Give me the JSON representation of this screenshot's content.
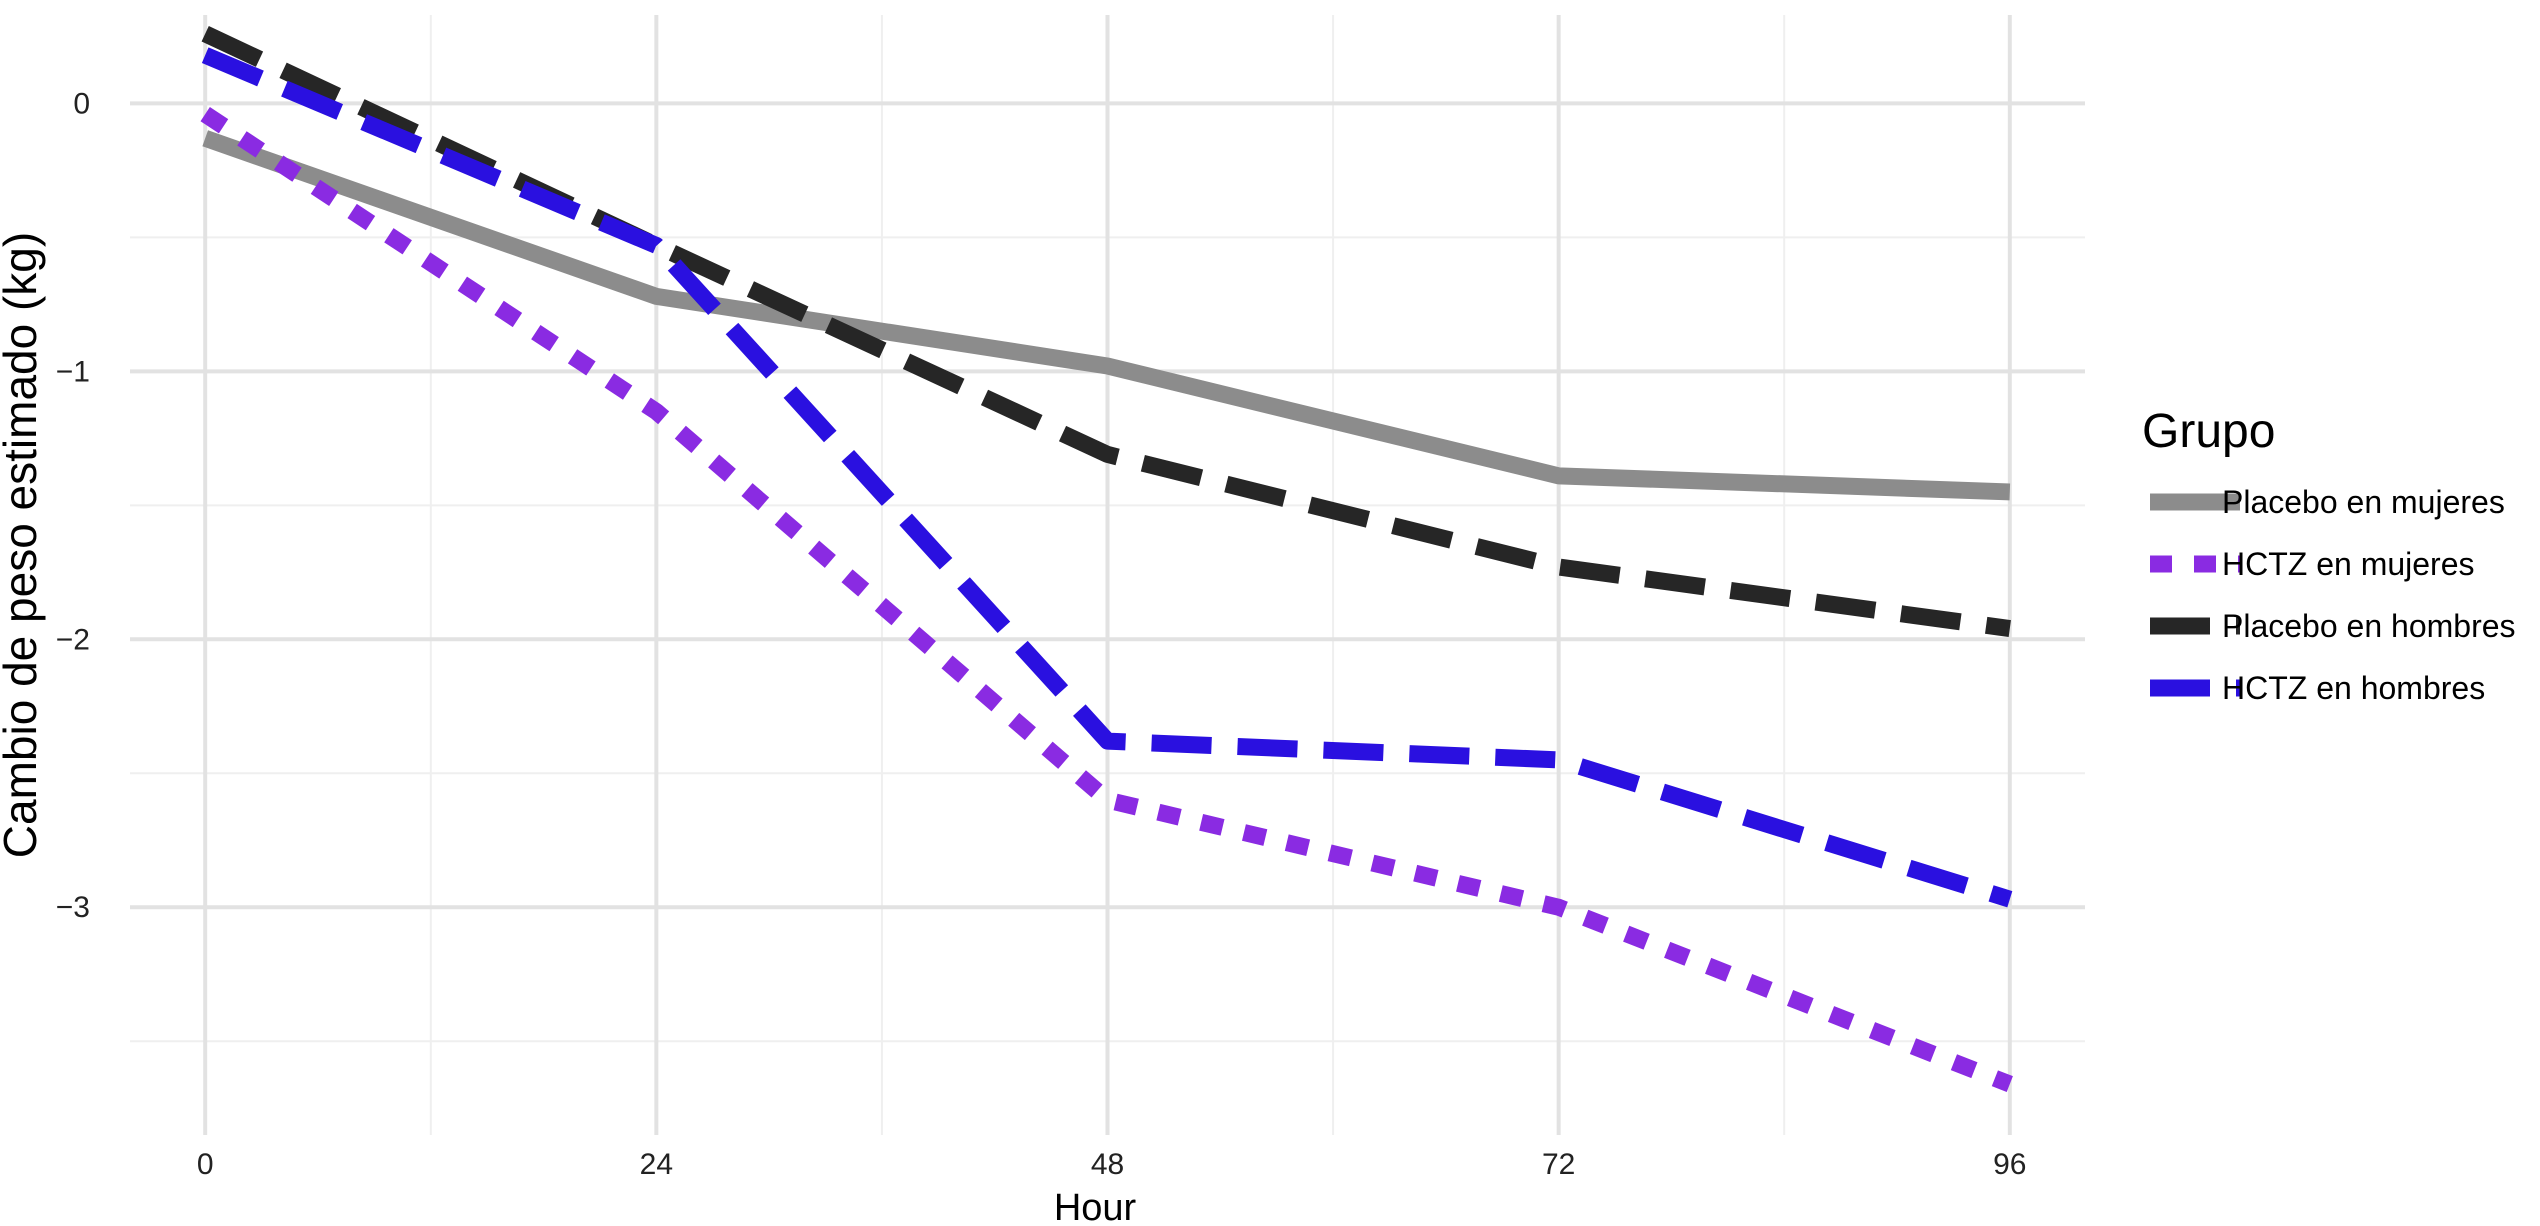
{
  "chart_data": {
    "type": "line",
    "xlabel": "Hour",
    "ylabel": "Cambio de peso estimado (kg)",
    "x": [
      0,
      24,
      48,
      72,
      96
    ],
    "x_ticks": [
      "0",
      "24",
      "48",
      "72",
      "96"
    ],
    "y_ticks": [
      "0",
      "−1",
      "−2",
      "−3"
    ],
    "y_tick_values": [
      0,
      -1,
      -2,
      -3
    ],
    "xlim": [
      -4,
      100
    ],
    "ylim": [
      -3.85,
      0.33
    ],
    "grid": true,
    "legend": {
      "title": "Grupo",
      "position": "right"
    },
    "series": [
      {
        "name": "Placebo en mujeres",
        "values": [
          -0.13,
          -0.72,
          -0.98,
          -1.39,
          -1.45
        ],
        "color": "#8c8c8c",
        "line_style": "solid"
      },
      {
        "name": "HCTZ en mujeres",
        "values": [
          -0.04,
          -1.15,
          -2.6,
          -3.0,
          -3.66
        ],
        "color": "#8a2be2",
        "line_style": "short-dash"
      },
      {
        "name": "Placebo en hombres",
        "values": [
          0.26,
          -0.53,
          -1.31,
          -1.73,
          -1.96
        ],
        "color": "#262626",
        "line_style": "long-dash"
      },
      {
        "name": "HCTZ en hombres",
        "values": [
          0.18,
          -0.53,
          -2.38,
          -2.45,
          -2.97
        ],
        "color": "#2a10e0",
        "line_style": "long-dash"
      }
    ]
  }
}
